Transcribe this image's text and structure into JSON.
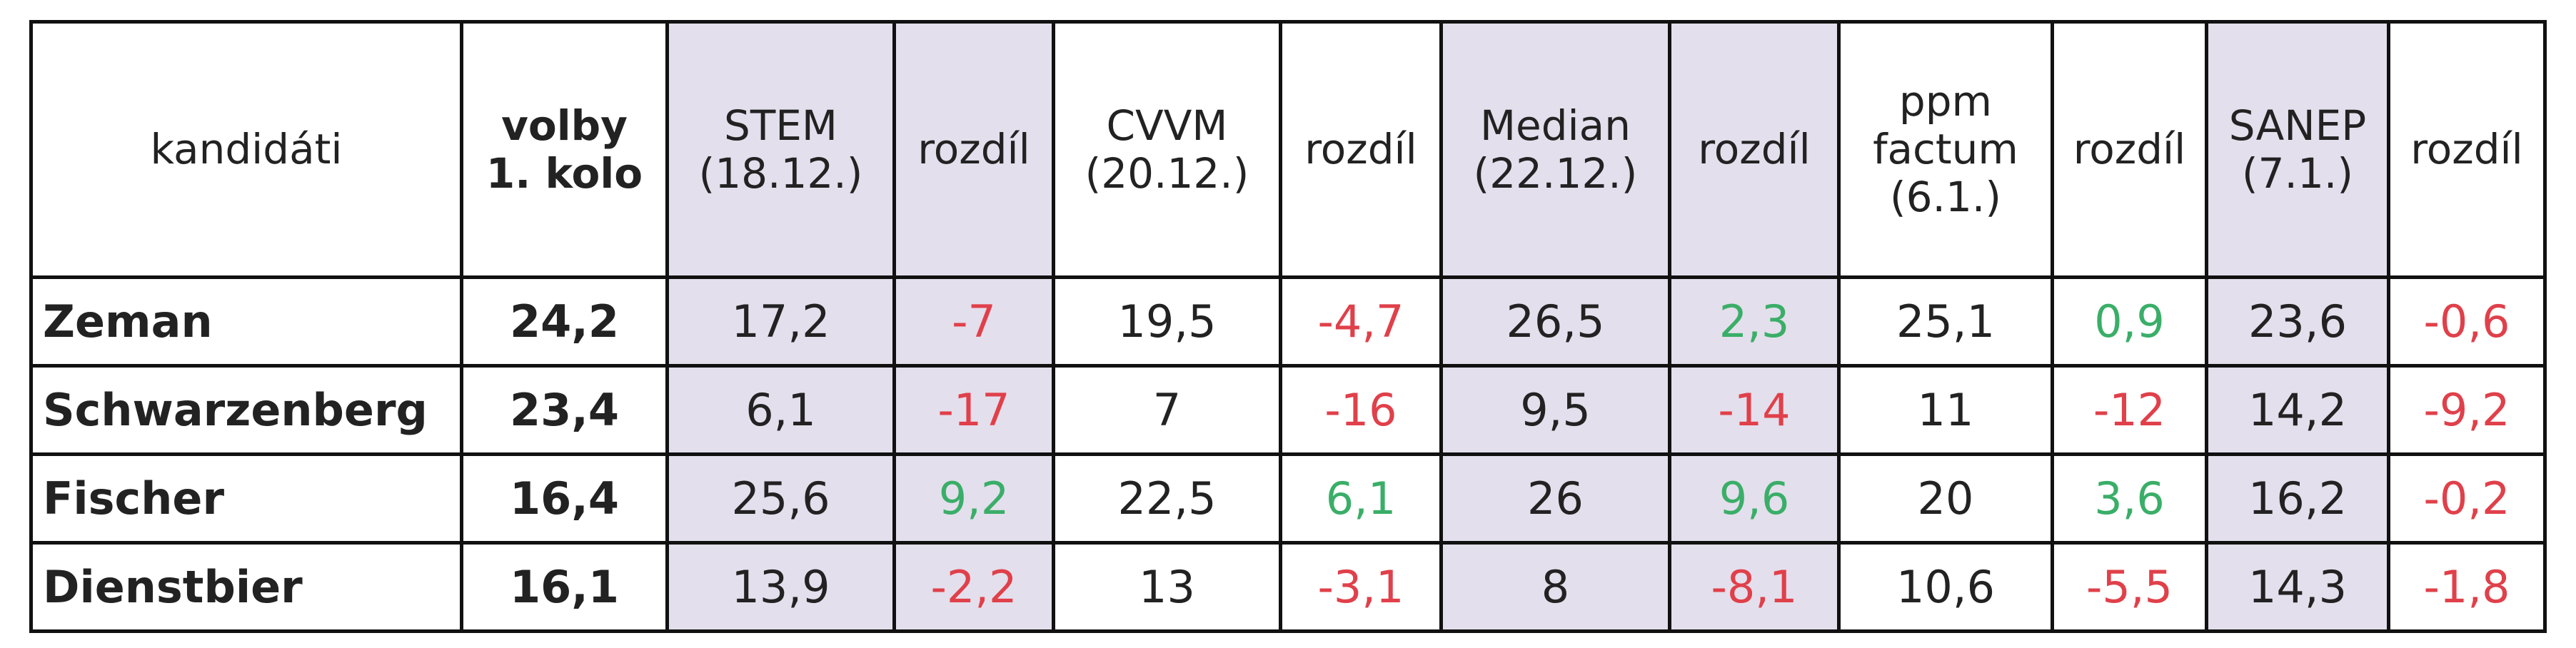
{
  "table": {
    "header": [
      [
        "kandidáti"
      ],
      [
        "volby",
        "1. kolo"
      ],
      [
        "STEM",
        "(18.12.)"
      ],
      [
        "rozdíl"
      ],
      [
        "CVVM",
        "(20.12.)"
      ],
      [
        "rozdíl"
      ],
      [
        "Median",
        "(22.12.)"
      ],
      [
        "rozdíl"
      ],
      [
        "ppm",
        "factum",
        "(6.1.)"
      ],
      [
        "rozdíl"
      ],
      [
        "SANEP",
        "(7.1.)"
      ],
      [
        "rozdíl"
      ]
    ],
    "rows": [
      [
        "Zeman",
        "24,2",
        "17,2",
        "-7",
        "19,5",
        "-4,7",
        "26,5",
        "2,3",
        "25,1",
        "0,9",
        "23,6",
        "-0,6"
      ],
      [
        "Schwarzenberg",
        "23,4",
        "6,1",
        "-17",
        "7",
        "-16",
        "9,5",
        "-14",
        "11",
        "-12",
        "14,2",
        "-9,2"
      ],
      [
        "Fischer",
        "16,4",
        "25,6",
        "9,2",
        "22,5",
        "6,1",
        "26",
        "9,6",
        "20",
        "3,6",
        "16,2",
        "-0,2"
      ],
      [
        "Dienstbier",
        "16,1",
        "13,9",
        "-2,2",
        "13",
        "-3,1",
        "8",
        "-8,1",
        "10,6",
        "-5,5",
        "14,3",
        "-1,8"
      ]
    ]
  }
}
